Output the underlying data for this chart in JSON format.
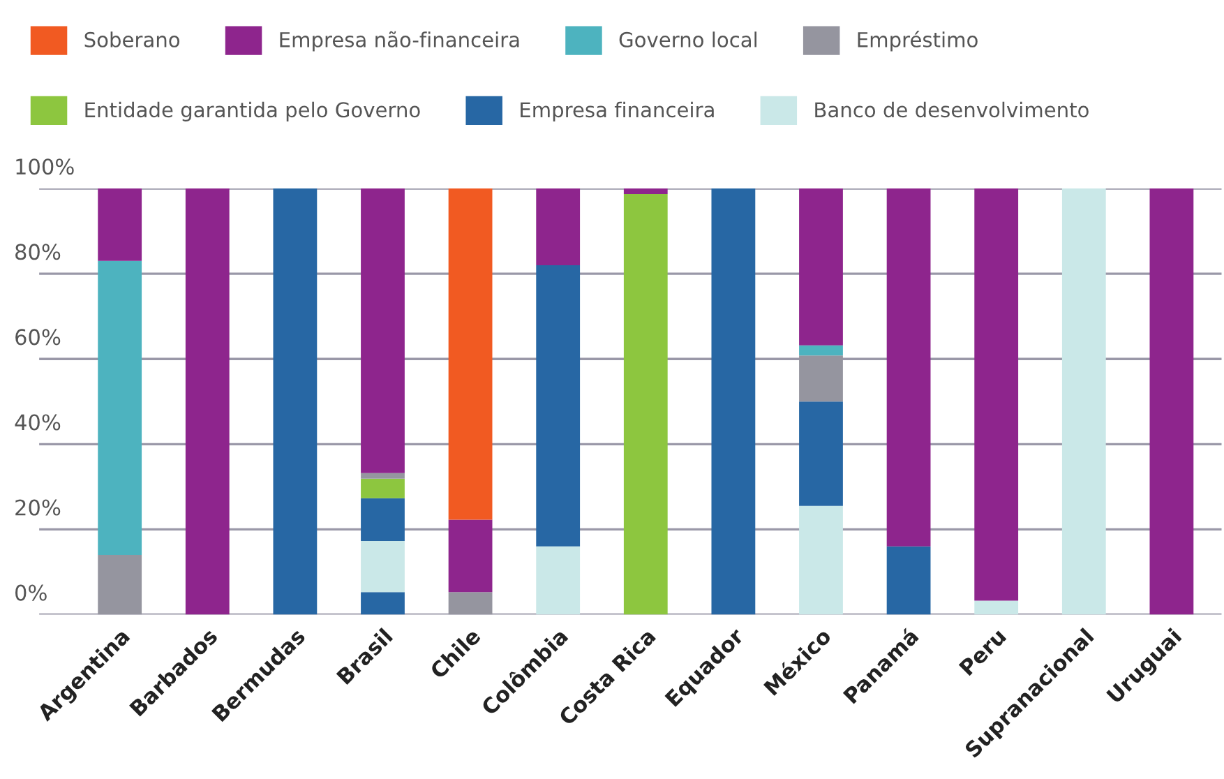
{
  "chart_data": {
    "type": "bar",
    "stacked": true,
    "legend": "top",
    "grid": "y",
    "categories": [
      "Argentina",
      "Barbados",
      "Bermudas",
      "Brasil",
      "Chile",
      "Colômbia",
      "Costa Rica",
      "Equador",
      "México",
      "Panamá",
      "Peru",
      "Supranacional",
      "Uruguai"
    ],
    "ylim": [
      0,
      100
    ],
    "yticks": [
      {
        "value": 0,
        "label": "0%"
      },
      {
        "value": 20,
        "label": "20%"
      },
      {
        "value": 40,
        "label": "40%"
      },
      {
        "value": 60,
        "label": "60%"
      },
      {
        "value": 80,
        "label": "80%"
      },
      {
        "value": 100,
        "label": "100%"
      }
    ],
    "series": [
      {
        "color": "#2767a4",
        "values": [
          null,
          null,
          null,
          5.3,
          null,
          null,
          null,
          null,
          null,
          null,
          null,
          null,
          null
        ]
      },
      {
        "name": "Banco de desenvolvimento",
        "color": "#cae8e8",
        "values": [
          null,
          null,
          null,
          12,
          null,
          16,
          null,
          null,
          25.5,
          null,
          3.3,
          100,
          null
        ]
      },
      {
        "name": "Empresa financeira",
        "color": "#2767a4",
        "values": [
          null,
          null,
          100,
          10,
          null,
          66,
          null,
          100,
          24.5,
          16,
          null,
          null,
          null
        ]
      },
      {
        "name": "Entidade garantida pelo Governo",
        "color": "#8dc63f",
        "values": [
          null,
          null,
          null,
          4.6,
          null,
          null,
          98.7,
          null,
          null,
          null,
          null,
          null,
          null
        ]
      },
      {
        "name": "Empréstimo",
        "color": "#95959f",
        "values": [
          14,
          null,
          null,
          1.3,
          5.3,
          null,
          null,
          null,
          10.8,
          null,
          null,
          null,
          null
        ]
      },
      {
        "name": "Governo local",
        "color": "#4db3bf",
        "values": [
          69,
          null,
          null,
          null,
          null,
          null,
          null,
          null,
          2.4,
          null,
          null,
          null,
          null
        ]
      },
      {
        "name": "Empresa não-financeira",
        "color": "#8e258d",
        "values": [
          17,
          100,
          null,
          66.8,
          17,
          18,
          1.3,
          null,
          36.8,
          84,
          96.7,
          null,
          100
        ]
      },
      {
        "name": "Soberano",
        "color": "#f15a22",
        "values": [
          null,
          null,
          null,
          null,
          77.7,
          null,
          null,
          null,
          null,
          null,
          null,
          null,
          null
        ]
      }
    ]
  }
}
